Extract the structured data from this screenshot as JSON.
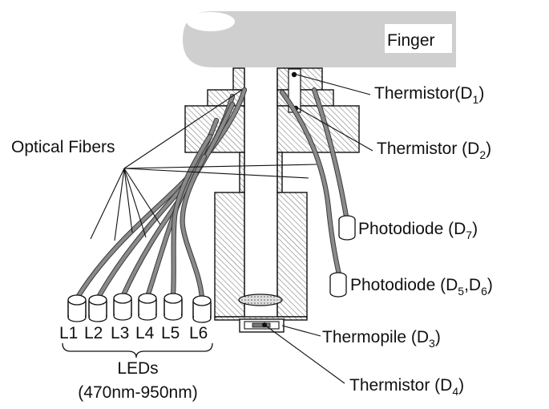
{
  "labels": {
    "finger": "Finger",
    "optical_fibers": "Optical Fibers",
    "thermistor_d1": {
      "main": "Thermistor(D",
      "sub": "1",
      "close": ")"
    },
    "thermistor_d2": {
      "main": "Thermistor (D",
      "sub": "2",
      "close": ")"
    },
    "photodiode_d7": {
      "main": "Photodiode (D",
      "sub": "7",
      "close": ")"
    },
    "photodiode_d5_d6": {
      "main": "Photodiode (D",
      "sub": "5",
      "mid": ",D",
      "sub2": "6",
      "close": ")"
    },
    "thermopile_d3": {
      "main": "Thermopile (D",
      "sub": "3",
      "close": ")"
    },
    "thermistor_d4": {
      "main": "Thermistor (D",
      "sub": "4",
      "close": ")"
    },
    "led_names": [
      "L1",
      "L2",
      "L3",
      "L4",
      "L5",
      "L6"
    ],
    "leds_title": "LEDs",
    "leds_range": "(470nm-950nm)"
  },
  "colors": {
    "finger_fill": "#cfcfcf",
    "fiber": "#8a8a8a",
    "line": "#111111",
    "background": "#ffffff"
  }
}
